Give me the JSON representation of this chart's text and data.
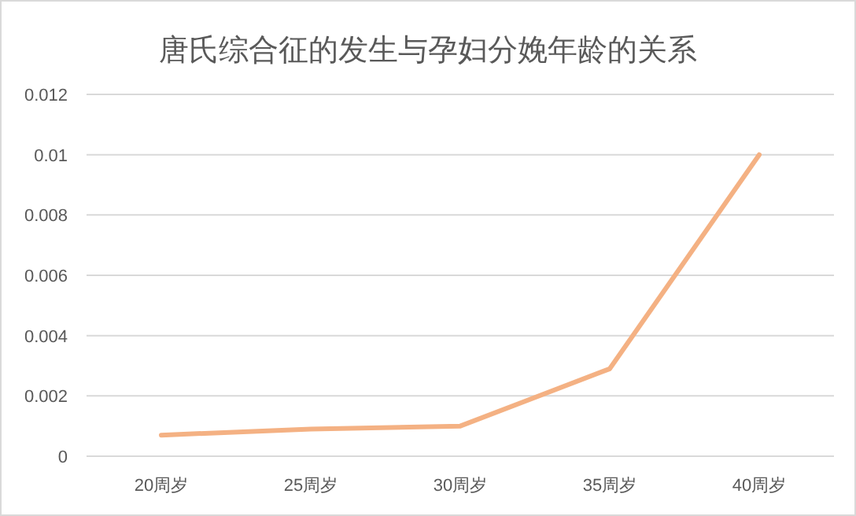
{
  "chart_data": {
    "type": "line",
    "title": "唐氏综合征的发生与孕妇分娩年龄的关系",
    "categories": [
      "20周岁",
      "25周岁",
      "30周岁",
      "35周岁",
      "40周岁"
    ],
    "series": [
      {
        "color": "#f4b183",
        "values": [
          0.0007,
          0.0009,
          0.001,
          0.0029,
          0.01
        ]
      }
    ],
    "ylim": [
      0,
      0.012
    ],
    "yticks": [
      0,
      0.002,
      0.004,
      0.006,
      0.008,
      0.01,
      0.012
    ],
    "grid": "y",
    "marker": "none",
    "line_style": "solid"
  }
}
